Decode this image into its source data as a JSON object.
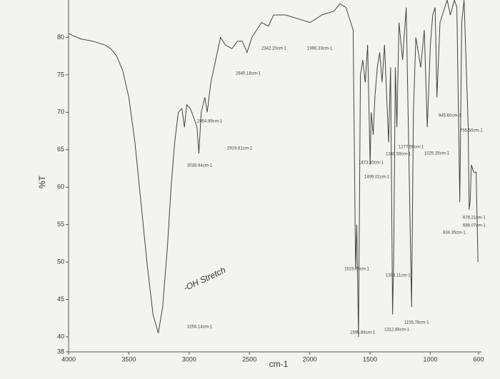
{
  "chart_data": {
    "type": "line",
    "xlabel": "cm-1",
    "ylabel": "%T",
    "xlim": [
      4000,
      600
    ],
    "ylim": [
      38,
      85
    ],
    "xticks": [
      4000,
      3500,
      3000,
      2500,
      2000,
      1500,
      1000,
      600
    ],
    "yticks": [
      38,
      40,
      45,
      50,
      55,
      60,
      65,
      70,
      75,
      80
    ],
    "x": [
      4000,
      3900,
      3800,
      3700,
      3650,
      3600,
      3550,
      3500,
      3450,
      3400,
      3350,
      3300,
      3256.14,
      3220,
      3180,
      3150,
      3120,
      3090,
      3060,
      3038.94,
      3020,
      2990,
      2954.99,
      2935,
      2919.61,
      2900,
      2870,
      2850,
      2820,
      2780,
      2740,
      2700,
      2645.18,
      2600,
      2560,
      2520,
      2480,
      2440,
      2400,
      2342.2,
      2300,
      2200,
      2100,
      1996.33,
      1900,
      1800,
      1750,
      1700,
      1660,
      1640,
      1619.79,
      1610,
      1595.84,
      1580,
      1560,
      1540,
      1520,
      1499.02,
      1490,
      1473.5,
      1460,
      1440,
      1420,
      1400,
      1380,
      1345.59,
      1330,
      1312.88,
      1304.11,
      1290,
      1277.56,
      1260,
      1230,
      1200,
      1155.78,
      1140,
      1120,
      1080,
      1050,
      1025.35,
      1000,
      980,
      960,
      945.6,
      920,
      880,
      860,
      834.35,
      800,
      780,
      755.5,
      740,
      720,
      686.07,
      678.21,
      670,
      660,
      640,
      620,
      605
    ],
    "series": [
      {
        "color": "#444444",
        "values": [
          80.5,
          79.8,
          79.5,
          79,
          78.5,
          77.5,
          75.5,
          72,
          66,
          58,
          50,
          43,
          40.5,
          44,
          52,
          60,
          66,
          70,
          70.5,
          68,
          71,
          70.5,
          69,
          68,
          64.5,
          70,
          72,
          70,
          74,
          77,
          80,
          79,
          78.5,
          79.5,
          79.5,
          78,
          80,
          81,
          82,
          81.5,
          83,
          83,
          82.5,
          82,
          83,
          83.5,
          84.5,
          84,
          82,
          81,
          49,
          55,
          40,
          75,
          77,
          74,
          79,
          63,
          70,
          67,
          72,
          76,
          78,
          74,
          79,
          66,
          76,
          43,
          50,
          76,
          68,
          82,
          77,
          84,
          44,
          70,
          80,
          76,
          81,
          68,
          79,
          83,
          84,
          72,
          82,
          84,
          85,
          83,
          85,
          84,
          58,
          82,
          85,
          68,
          57,
          58,
          63,
          62,
          62,
          50
        ]
      }
    ],
    "annotations": [
      "3256.14cm-1",
      "3038.94cm-1",
      "2954.99cm-1",
      "2919.61cm-1",
      "2645.18cm-1",
      "2342.20cm-1",
      "1996.33cm-1",
      "1619.79cm-1",
      "1595.84cm-1",
      "1499.02cm-1",
      "1473.50cm-1",
      "1345.59cm-1",
      "1277.56cm-1",
      "1304.11cm-1",
      "1312.88cm-1",
      "1155.78cm-1",
      "1025.35cm-1",
      "945.60cm-1",
      "755.50cm-1",
      "678.21cm-1",
      "686.07cm-1",
      "834.35cm-1"
    ],
    "note": "-OH Stretch"
  }
}
